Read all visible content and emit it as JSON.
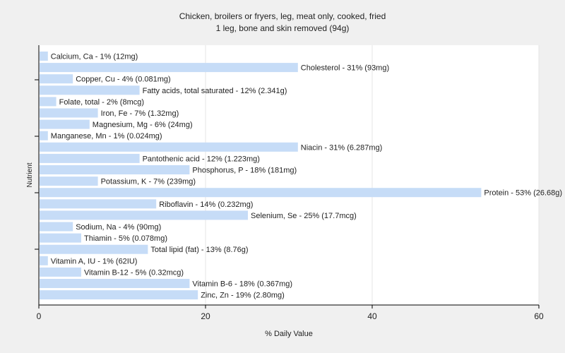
{
  "chart_data": {
    "type": "bar",
    "orientation": "horizontal",
    "title": "Chicken, broilers or fryers, leg, meat only, cooked, fried",
    "subtitle": "1 leg, bone and skin removed (94g)",
    "xlabel": "% Daily Value",
    "ylabel": "Nutrient",
    "xlim": [
      0,
      60
    ],
    "xticks": [
      0,
      20,
      40,
      60
    ],
    "grid": true,
    "bar_color": "#c6dcf7",
    "bars": [
      {
        "label": "Calcium, Ca - 1% (12mg)",
        "value": 1
      },
      {
        "label": "Cholesterol - 31% (93mg)",
        "value": 31
      },
      {
        "label": "Copper, Cu - 4% (0.081mg)",
        "value": 4
      },
      {
        "label": "Fatty acids, total saturated - 12% (2.341g)",
        "value": 12
      },
      {
        "label": "Folate, total - 2% (8mcg)",
        "value": 2
      },
      {
        "label": "Iron, Fe - 7% (1.32mg)",
        "value": 7
      },
      {
        "label": "Magnesium, Mg - 6% (24mg)",
        "value": 6
      },
      {
        "label": "Manganese, Mn - 1% (0.024mg)",
        "value": 1
      },
      {
        "label": "Niacin - 31% (6.287mg)",
        "value": 31
      },
      {
        "label": "Pantothenic acid - 12% (1.223mg)",
        "value": 12
      },
      {
        "label": "Phosphorus, P - 18% (181mg)",
        "value": 18
      },
      {
        "label": "Potassium, K - 7% (239mg)",
        "value": 7
      },
      {
        "label": "Protein - 53% (26.68g)",
        "value": 53
      },
      {
        "label": "Riboflavin - 14% (0.232mg)",
        "value": 14
      },
      {
        "label": "Selenium, Se - 25% (17.7mcg)",
        "value": 25
      },
      {
        "label": "Sodium, Na - 4% (90mg)",
        "value": 4
      },
      {
        "label": "Thiamin - 5% (0.078mg)",
        "value": 5
      },
      {
        "label": "Total lipid (fat) - 13% (8.76g)",
        "value": 13
      },
      {
        "label": "Vitamin A, IU - 1% (62IU)",
        "value": 1
      },
      {
        "label": "Vitamin B-12 - 5% (0.32mcg)",
        "value": 5
      },
      {
        "label": "Vitamin B-6 - 18% (0.367mg)",
        "value": 18
      },
      {
        "label": "Zinc, Zn - 19% (2.80mg)",
        "value": 19
      }
    ]
  }
}
